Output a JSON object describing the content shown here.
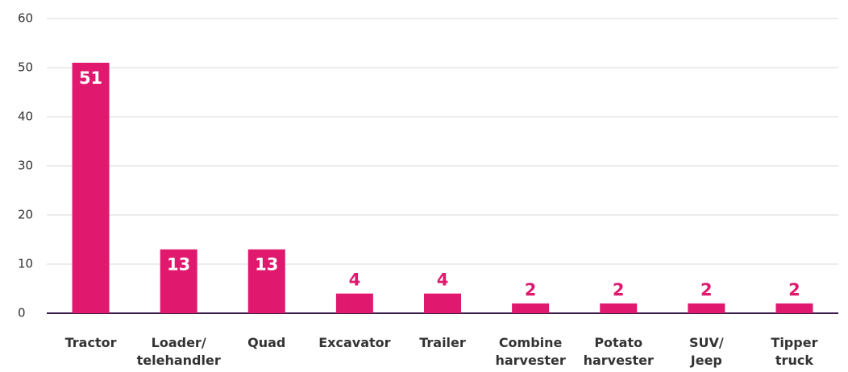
{
  "chart_data": {
    "type": "bar",
    "categories": [
      [
        "Tractor"
      ],
      [
        "Loader/",
        "telehandler"
      ],
      [
        "Quad"
      ],
      [
        "Excavator"
      ],
      [
        "Trailer"
      ],
      [
        "Combine",
        "harvester"
      ],
      [
        "Potato",
        "harvester"
      ],
      [
        "SUV/",
        "Jeep"
      ],
      [
        "Tipper",
        "truck"
      ]
    ],
    "values": [
      51,
      13,
      13,
      4,
      4,
      2,
      2,
      2,
      2
    ],
    "color": "#e0196e",
    "ylim": [
      0,
      60
    ],
    "yticks": [
      0,
      10,
      20,
      30,
      40,
      50,
      60
    ],
    "grid": true
  }
}
